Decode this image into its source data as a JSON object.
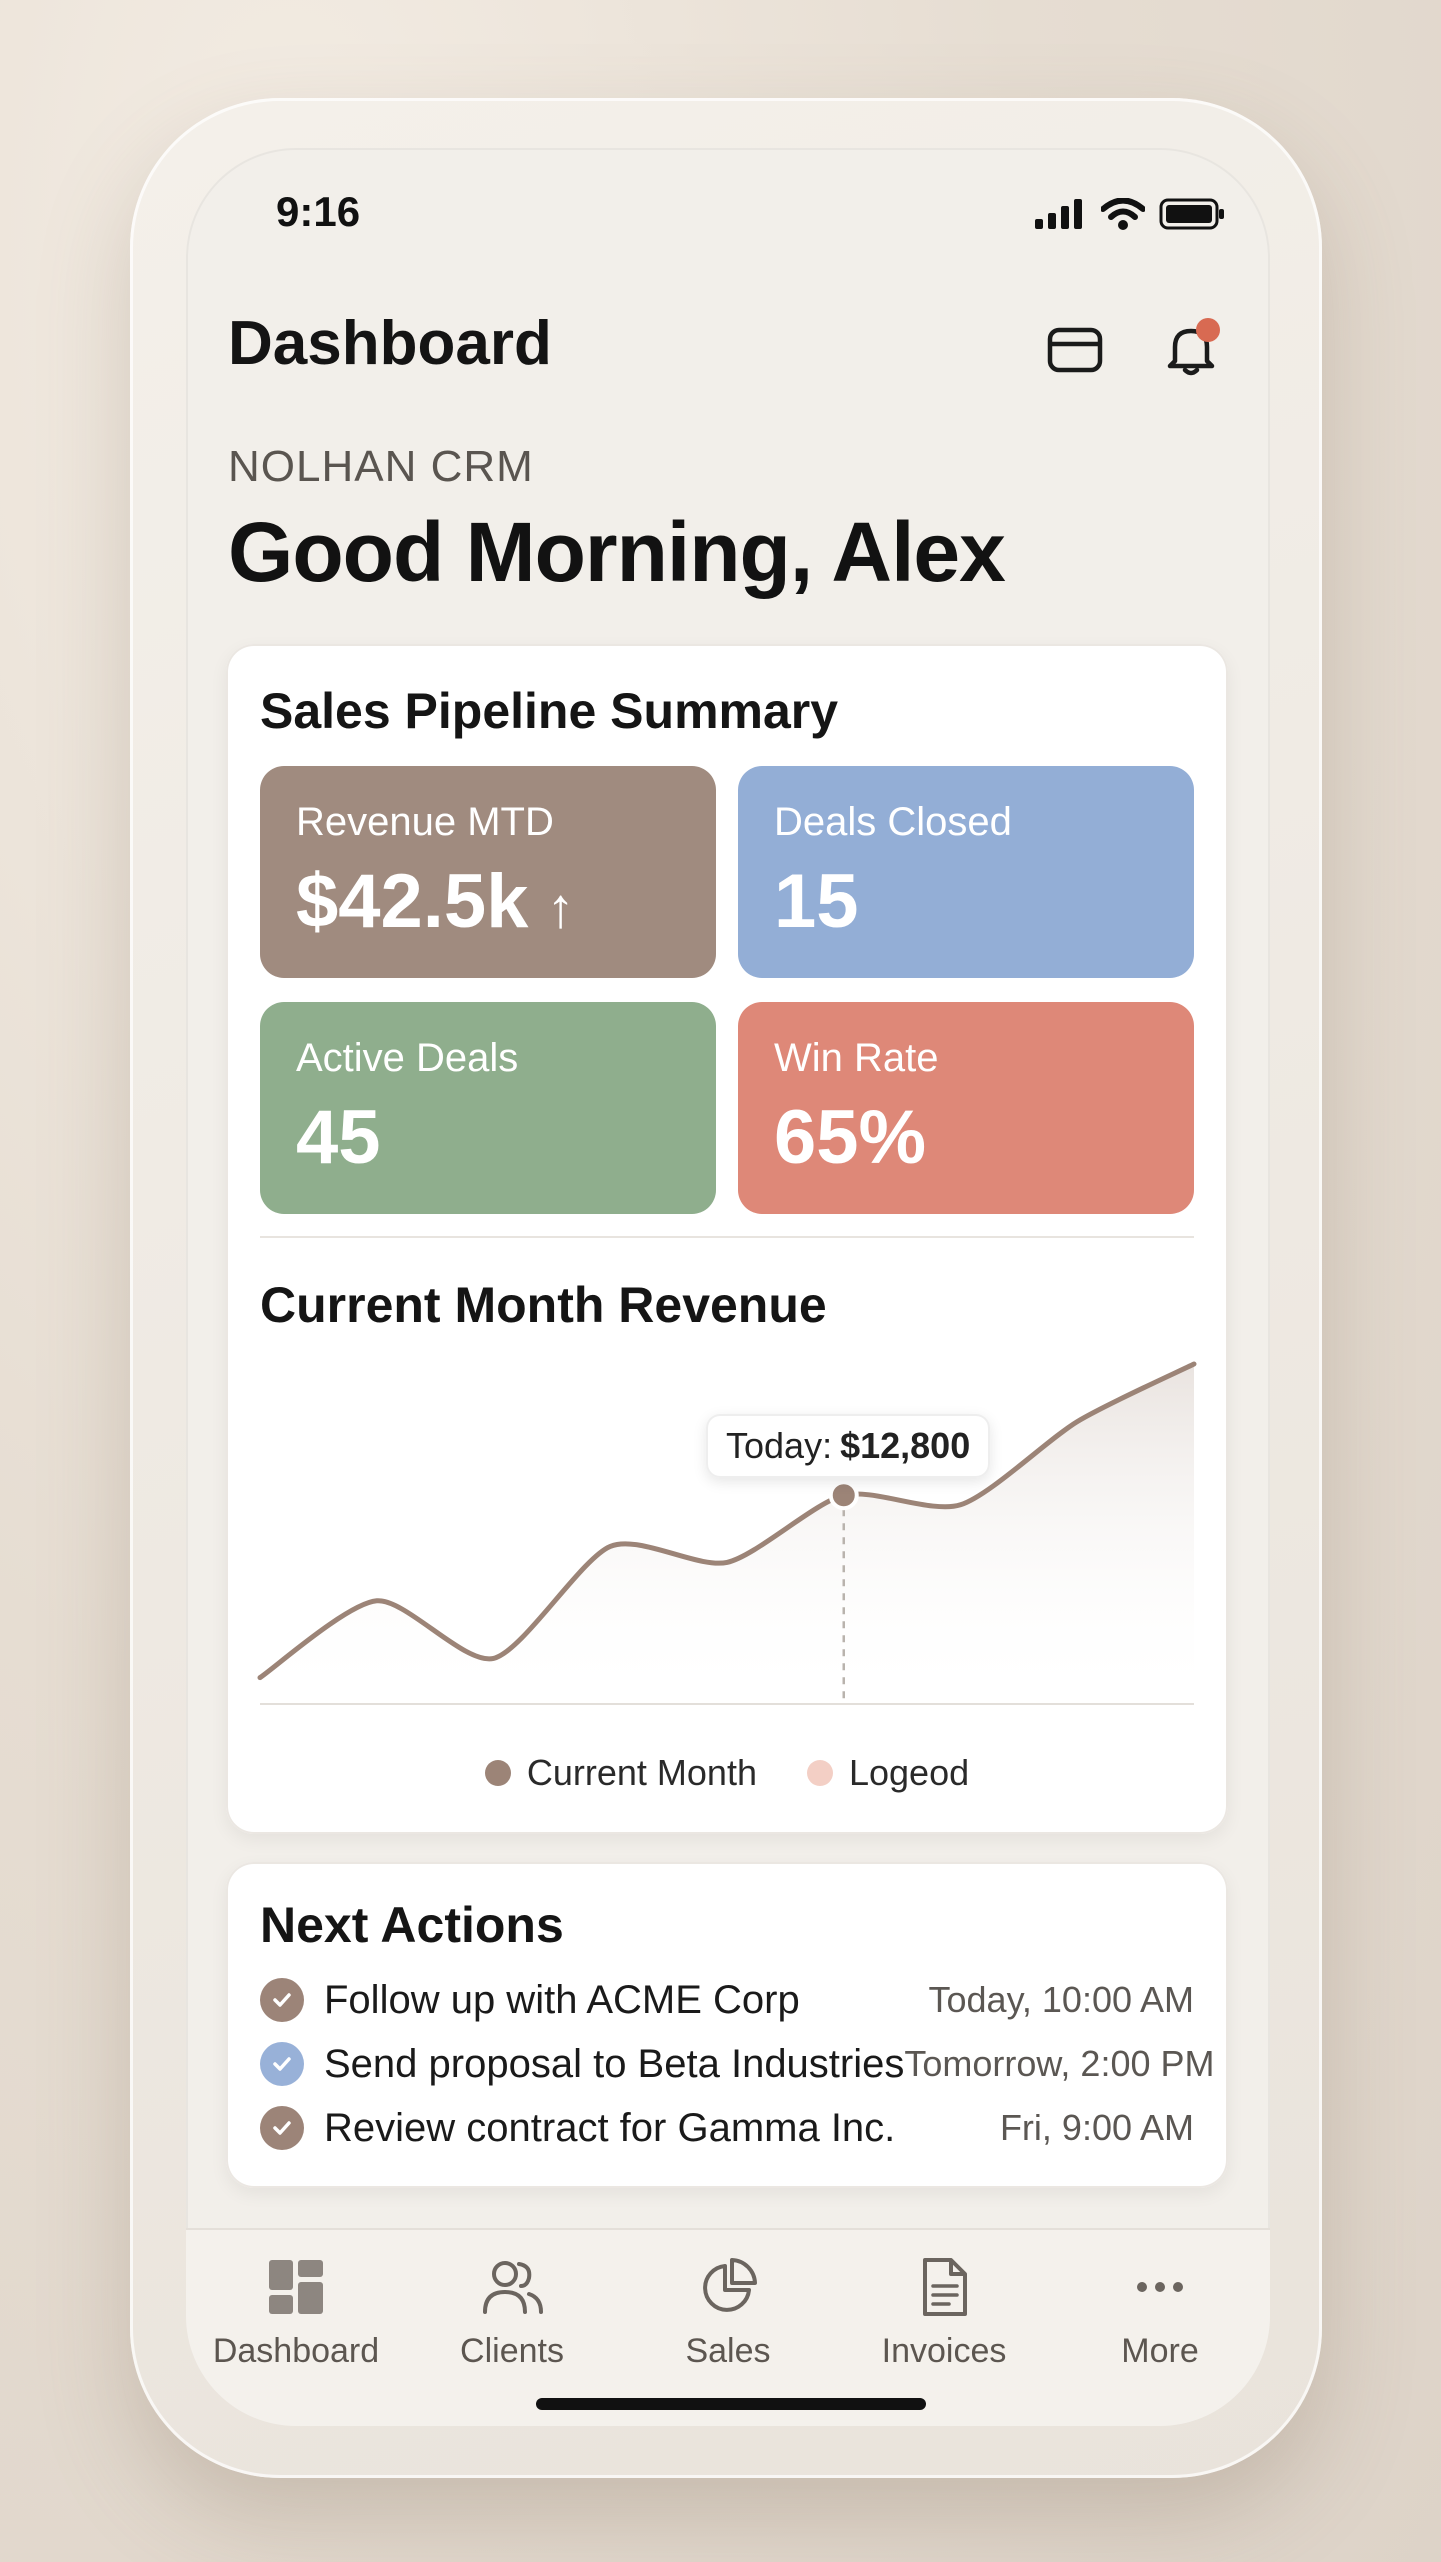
{
  "colors": {
    "tile_revenue": "#a08b7f",
    "tile_deals_closed": "#93aed6",
    "tile_active": "#8fae8d",
    "tile_win_rate": "#de8878",
    "notification_dot": "#d86a52",
    "chart_line": "#9c8477",
    "check_brown": "#9c8478",
    "check_blue": "#98b1d8",
    "legend_logeod": "#f3cfc5"
  },
  "status_bar": {
    "time": "9:16",
    "icons": [
      "signal-icon",
      "wifi-icon",
      "battery-icon"
    ]
  },
  "header": {
    "title": "Dashboard",
    "icons": [
      "mail-icon",
      "bell-icon"
    ]
  },
  "brand": "NOLHAN CRM",
  "greeting": "Good Morning, Alex",
  "pipeline": {
    "title": "Sales Pipeline Summary",
    "tiles": [
      {
        "label": "Revenue MTD",
        "value": "$42.5k",
        "trend": "↑"
      },
      {
        "label": "Deals Closed",
        "value": "15"
      },
      {
        "label": "Active Deals",
        "value": "45"
      },
      {
        "label": "Win Rate",
        "value": "65%"
      }
    ]
  },
  "revenue_chart": {
    "title": "Current Month Revenue",
    "tooltip_label": "Today:",
    "tooltip_value": "$12,800",
    "legend": [
      "Current Month",
      "Logeod"
    ]
  },
  "chart_data": {
    "type": "area",
    "title": "Current Month Revenue",
    "series": [
      {
        "name": "Current Month",
        "values": [
          2,
          26,
          8,
          43,
          38,
          59,
          56,
          82,
          100
        ]
      }
    ],
    "x": [
      0,
      1,
      2,
      3,
      4,
      5,
      6,
      7,
      8
    ],
    "highlight": {
      "index": 5,
      "label": "Today: $12,800"
    },
    "ylim": [
      0,
      100
    ],
    "grid": false,
    "legend": "bottom"
  },
  "next_actions": {
    "title": "Next Actions",
    "items": [
      {
        "text": "Follow up with ACME Corp",
        "time": "Today, 10:00 AM"
      },
      {
        "text": "Send proposal to Beta Industries",
        "time": "Tomorrow, 2:00 PM"
      },
      {
        "text": "Review contract for Gamma Inc.",
        "time": "Fri, 9:00 AM"
      }
    ]
  },
  "tabs": [
    {
      "label": "Dashboard",
      "icon": "dashboard-icon"
    },
    {
      "label": "Clients",
      "icon": "users-icon"
    },
    {
      "label": "Sales",
      "icon": "pie-chart-icon"
    },
    {
      "label": "Invoices",
      "icon": "document-icon"
    },
    {
      "label": "More",
      "icon": "more-icon"
    }
  ]
}
